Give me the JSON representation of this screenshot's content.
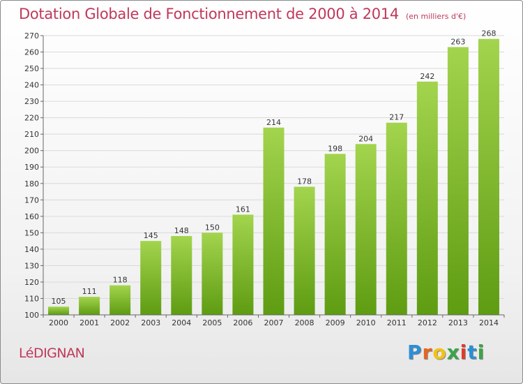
{
  "title": "Dotation Globale de Fonctionnement de 2000 à 2014",
  "subtitle": "(en milliers d'€)",
  "commune": "LéDIGNAN",
  "logo": {
    "letters": [
      "P",
      "r",
      "o",
      "x",
      "i",
      "t",
      "i"
    ],
    "colors": [
      "#2b8fd6",
      "#e8641e",
      "#f2c313",
      "#3aa548",
      "#e03a2c",
      "#2b8fd6",
      "#3aa548"
    ]
  },
  "colors": {
    "bar_light": "#a3d44e",
    "bar_dark": "#5e9c12",
    "axis": "#666666",
    "grid": "#d9d9d9",
    "title": "#c0385a"
  },
  "chart_data": {
    "type": "bar",
    "title": "Dotation Globale de Fonctionnement de 2000 à 2014",
    "subtitle": "(en milliers d'€)",
    "categories": [
      "2000",
      "2001",
      "2002",
      "2003",
      "2004",
      "2005",
      "2006",
      "2007",
      "2008",
      "2009",
      "2010",
      "2011",
      "2012",
      "2013",
      "2014"
    ],
    "values": [
      105,
      111,
      118,
      145,
      148,
      150,
      161,
      214,
      178,
      198,
      204,
      217,
      242,
      263,
      268
    ],
    "ylim": [
      100,
      270
    ],
    "yticks": [
      100,
      110,
      120,
      130,
      140,
      150,
      160,
      170,
      180,
      190,
      200,
      210,
      220,
      230,
      240,
      250,
      260,
      270
    ],
    "xlabel": "",
    "ylabel": "",
    "grid": true,
    "data_labels": true
  }
}
